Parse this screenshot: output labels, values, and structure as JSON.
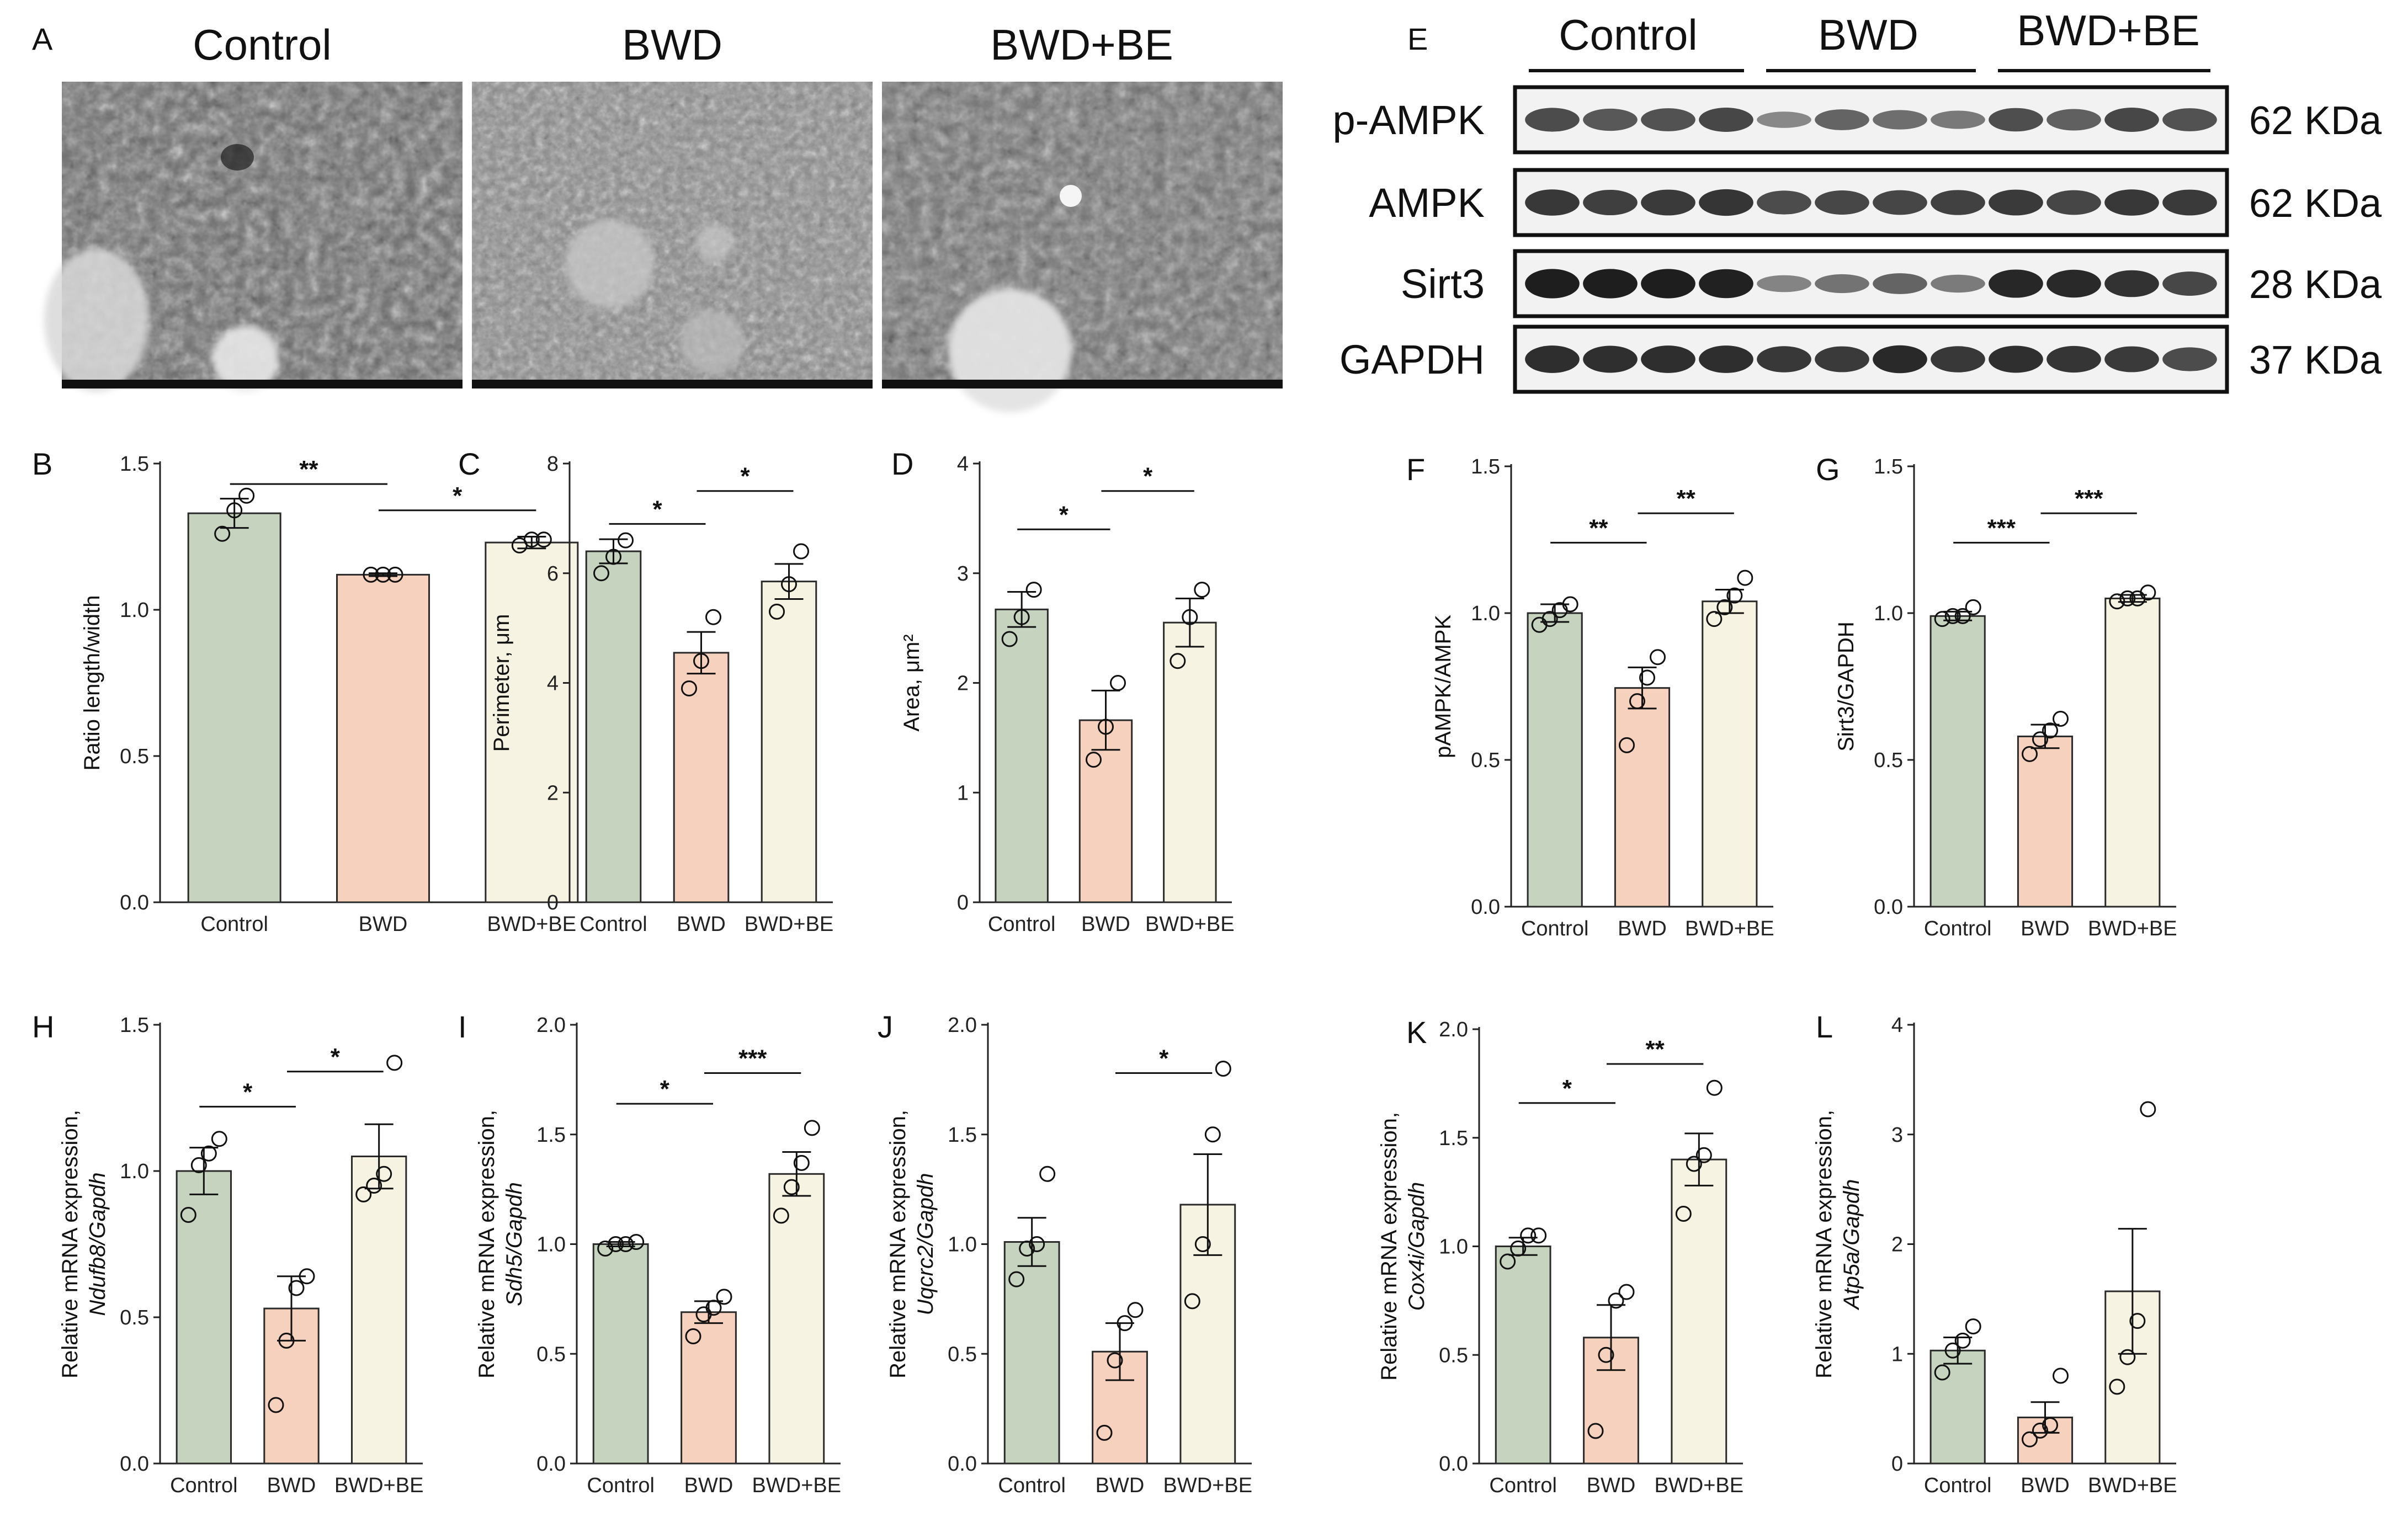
{
  "colors": {
    "Control": "#c5d3bf",
    "BWD": "#f6d1bd",
    "BWD+BE": "#f7f3e2",
    "axis": "#222222",
    "band": "#1a1a1a"
  },
  "panelA": {
    "letter": "A",
    "groups": [
      "Control",
      "BWD",
      "BWD+BE"
    ]
  },
  "panelE": {
    "letter": "E",
    "groups": [
      "Control",
      "BWD",
      "BWD+BE"
    ],
    "blots": [
      {
        "name": "p-AMPK",
        "size": "62 KDa",
        "intensities": [
          0.7,
          0.62,
          0.66,
          0.72,
          0.32,
          0.55,
          0.48,
          0.42,
          0.68,
          0.58,
          0.72,
          0.66
        ]
      },
      {
        "name": "AMPK",
        "size": "62 KDa",
        "intensities": [
          0.82,
          0.78,
          0.8,
          0.84,
          0.7,
          0.72,
          0.74,
          0.76,
          0.8,
          0.74,
          0.82,
          0.8
        ]
      },
      {
        "name": "Sirt3",
        "size": "28 KDa",
        "intensities": [
          0.98,
          0.98,
          0.98,
          0.96,
          0.35,
          0.45,
          0.55,
          0.4,
          0.92,
          0.9,
          0.85,
          0.72
        ]
      },
      {
        "name": "GAPDH",
        "size": "37 KDa",
        "intensities": [
          0.88,
          0.86,
          0.88,
          0.88,
          0.82,
          0.8,
          0.9,
          0.82,
          0.86,
          0.84,
          0.8,
          0.7
        ]
      }
    ]
  },
  "chart_data": [
    {
      "letter": "B",
      "type": "bar",
      "categories": [
        "Control",
        "BWD",
        "BWD+BE"
      ],
      "values": [
        1.33,
        1.12,
        1.23
      ],
      "errors": [
        0.05,
        0.005,
        0.02
      ],
      "points": [
        [
          1.26,
          1.34,
          1.39
        ],
        [
          1.12,
          1.12,
          1.12
        ],
        [
          1.22,
          1.24,
          1.24
        ]
      ],
      "ylabel": "Ratio length/width",
      "ylim": [
        0,
        1.5
      ],
      "yticks": [
        "0.0",
        "0.5",
        "1.0",
        "1.5"
      ],
      "sig": [
        {
          "from": 0,
          "to": 1,
          "level": 1.43,
          "text": "**"
        },
        {
          "from": 1,
          "to": 2,
          "level": 1.34,
          "text": "*"
        }
      ]
    },
    {
      "letter": "C",
      "type": "bar",
      "categories": [
        "Control",
        "BWD",
        "BWD+BE"
      ],
      "values": [
        6.4,
        4.55,
        5.85
      ],
      "errors": [
        0.22,
        0.38,
        0.32
      ],
      "points": [
        [
          6.0,
          6.3,
          6.6
        ],
        [
          3.9,
          4.4,
          5.2
        ],
        [
          5.3,
          5.8,
          6.4
        ]
      ],
      "ylabel": "Perimeter, μm",
      "ylim": [
        0,
        8
      ],
      "yticks": [
        "0",
        "2",
        "4",
        "6",
        "8"
      ],
      "sig": [
        {
          "from": 0,
          "to": 1,
          "level": 6.9,
          "text": "*"
        },
        {
          "from": 1,
          "to": 2,
          "level": 7.5,
          "text": "*"
        }
      ]
    },
    {
      "letter": "D",
      "type": "bar",
      "categories": [
        "Control",
        "BWD",
        "BWD+BE"
      ],
      "values": [
        2.67,
        1.66,
        2.55
      ],
      "errors": [
        0.16,
        0.27,
        0.22
      ],
      "points": [
        [
          2.4,
          2.6,
          2.85
        ],
        [
          1.3,
          1.6,
          2.0
        ],
        [
          2.2,
          2.6,
          2.85
        ]
      ],
      "ylabel": "Area, μm²",
      "ylim": [
        0,
        4
      ],
      "yticks": [
        "0",
        "1",
        "2",
        "3",
        "4"
      ],
      "sig": [
        {
          "from": 0,
          "to": 1,
          "level": 3.4,
          "text": "*"
        },
        {
          "from": 1,
          "to": 2,
          "level": 3.75,
          "text": "*"
        }
      ]
    },
    {
      "letter": "F",
      "type": "bar",
      "categories": [
        "Control",
        "BWD",
        "BWD+BE"
      ],
      "values": [
        1.0,
        0.745,
        1.04
      ],
      "errors": [
        0.03,
        0.07,
        0.04
      ],
      "points": [
        [
          0.96,
          0.98,
          1.01,
          1.03
        ],
        [
          0.55,
          0.7,
          0.78,
          0.85
        ],
        [
          0.98,
          1.02,
          1.06,
          1.12
        ]
      ],
      "ylabel": "pAMPK/AMPK",
      "ylim": [
        0,
        1.5
      ],
      "yticks": [
        "0.0",
        "0.5",
        "1.0",
        "1.5"
      ],
      "sig": [
        {
          "from": 0,
          "to": 1,
          "level": 1.24,
          "text": "**"
        },
        {
          "from": 1,
          "to": 2,
          "level": 1.34,
          "text": "**"
        }
      ]
    },
    {
      "letter": "G",
      "type": "bar",
      "categories": [
        "Control",
        "BWD",
        "BWD+BE"
      ],
      "values": [
        0.99,
        0.58,
        1.05
      ],
      "errors": [
        0.015,
        0.04,
        0.012
      ],
      "points": [
        [
          0.98,
          0.99,
          0.99,
          1.02
        ],
        [
          0.52,
          0.57,
          0.6,
          0.64
        ],
        [
          1.04,
          1.05,
          1.05,
          1.07
        ]
      ],
      "ylabel": "Sirt3/GAPDH",
      "ylim": [
        0,
        1.5
      ],
      "yticks": [
        "0.0",
        "0.5",
        "1.0",
        "1.5"
      ],
      "sig": [
        {
          "from": 0,
          "to": 1,
          "level": 1.24,
          "text": "***"
        },
        {
          "from": 1,
          "to": 2,
          "level": 1.34,
          "text": "***"
        }
      ]
    },
    {
      "letter": "H",
      "type": "bar",
      "categories": [
        "Control",
        "BWD",
        "BWD+BE"
      ],
      "values": [
        1.0,
        0.53,
        1.05
      ],
      "errors": [
        0.08,
        0.11,
        0.11
      ],
      "points": [
        [
          0.85,
          1.02,
          1.06,
          1.11
        ],
        [
          0.2,
          0.42,
          0.6,
          0.64
        ],
        [
          0.92,
          0.95,
          0.99,
          1.37
        ]
      ],
      "ylabel": "Relative mRNA expression,",
      "ylabel2": "Ndufb8/Gapdh",
      "ylim": [
        0,
        1.5
      ],
      "yticks": [
        "0.0",
        "0.5",
        "1.0",
        "1.5"
      ],
      "sig": [
        {
          "from": 0,
          "to": 1,
          "level": 1.22,
          "text": "*"
        },
        {
          "from": 1,
          "to": 2,
          "level": 1.34,
          "text": "*"
        }
      ]
    },
    {
      "letter": "I",
      "type": "bar",
      "categories": [
        "Control",
        "BWD",
        "BWD+BE"
      ],
      "values": [
        1.0,
        0.69,
        1.32
      ],
      "errors": [
        0.01,
        0.05,
        0.1
      ],
      "points": [
        [
          0.98,
          1.0,
          1.0,
          1.01
        ],
        [
          0.58,
          0.68,
          0.71,
          0.76
        ],
        [
          1.13,
          1.26,
          1.37,
          1.53
        ]
      ],
      "ylabel": "Relative mRNA expression,",
      "ylabel2": "Sdh5/Gapdh",
      "ylim": [
        0,
        2
      ],
      "yticks": [
        "0.0",
        "0.5",
        "1.0",
        "1.5",
        "2.0"
      ],
      "sig": [
        {
          "from": 0,
          "to": 1,
          "level": 1.64,
          "text": "*"
        },
        {
          "from": 1,
          "to": 2,
          "level": 1.78,
          "text": "***"
        }
      ]
    },
    {
      "letter": "J",
      "type": "bar",
      "categories": [
        "Control",
        "BWD",
        "BWD+BE"
      ],
      "values": [
        1.01,
        0.51,
        1.18
      ],
      "errors": [
        0.11,
        0.13,
        0.23
      ],
      "points": [
        [
          0.84,
          0.98,
          1.0,
          1.32
        ],
        [
          0.14,
          0.47,
          0.64,
          0.7
        ],
        [
          0.74,
          1.0,
          1.5,
          1.8
        ]
      ],
      "ylabel": "Relative mRNA expression,",
      "ylabel2": "Uqcrc2/Gapdh",
      "ylim": [
        0,
        2
      ],
      "yticks": [
        "0.0",
        "0.5",
        "1.0",
        "1.5",
        "2.0"
      ],
      "sig": [
        {
          "from": 1,
          "to": 2,
          "level": 1.78,
          "text": "*"
        }
      ]
    },
    {
      "letter": "K",
      "type": "bar",
      "categories": [
        "Control",
        "BWD",
        "BWD+BE"
      ],
      "values": [
        1.0,
        0.58,
        1.4
      ],
      "errors": [
        0.04,
        0.15,
        0.12
      ],
      "points": [
        [
          0.93,
          0.99,
          1.05,
          1.05
        ],
        [
          0.15,
          0.5,
          0.75,
          0.79
        ],
        [
          1.15,
          1.38,
          1.42,
          1.73
        ]
      ],
      "ylabel": "Relative mRNA expression,",
      "ylabel2": "Cox4i/Gapdh",
      "ylim": [
        0,
        2
      ],
      "yticks": [
        "0.0",
        "0.5",
        "1.0",
        "1.5",
        "2.0"
      ],
      "sig": [
        {
          "from": 0,
          "to": 1,
          "level": 1.66,
          "text": "*"
        },
        {
          "from": 1,
          "to": 2,
          "level": 1.84,
          "text": "**"
        }
      ]
    },
    {
      "letter": "L",
      "type": "bar",
      "categories": [
        "Control",
        "BWD",
        "BWD+BE"
      ],
      "values": [
        1.03,
        0.42,
        1.57
      ],
      "errors": [
        0.12,
        0.14,
        0.57
      ],
      "points": [
        [
          0.83,
          1.03,
          1.12,
          1.25
        ],
        [
          0.22,
          0.3,
          0.35,
          0.8
        ],
        [
          0.7,
          0.97,
          1.3,
          3.23
        ]
      ],
      "ylabel": "Relative mRNA expression,",
      "ylabel2": "Atp5a/Gapdh",
      "ylim": [
        0,
        4
      ],
      "yticks": [
        "0",
        "1",
        "2",
        "3",
        "4"
      ],
      "sig": []
    }
  ]
}
